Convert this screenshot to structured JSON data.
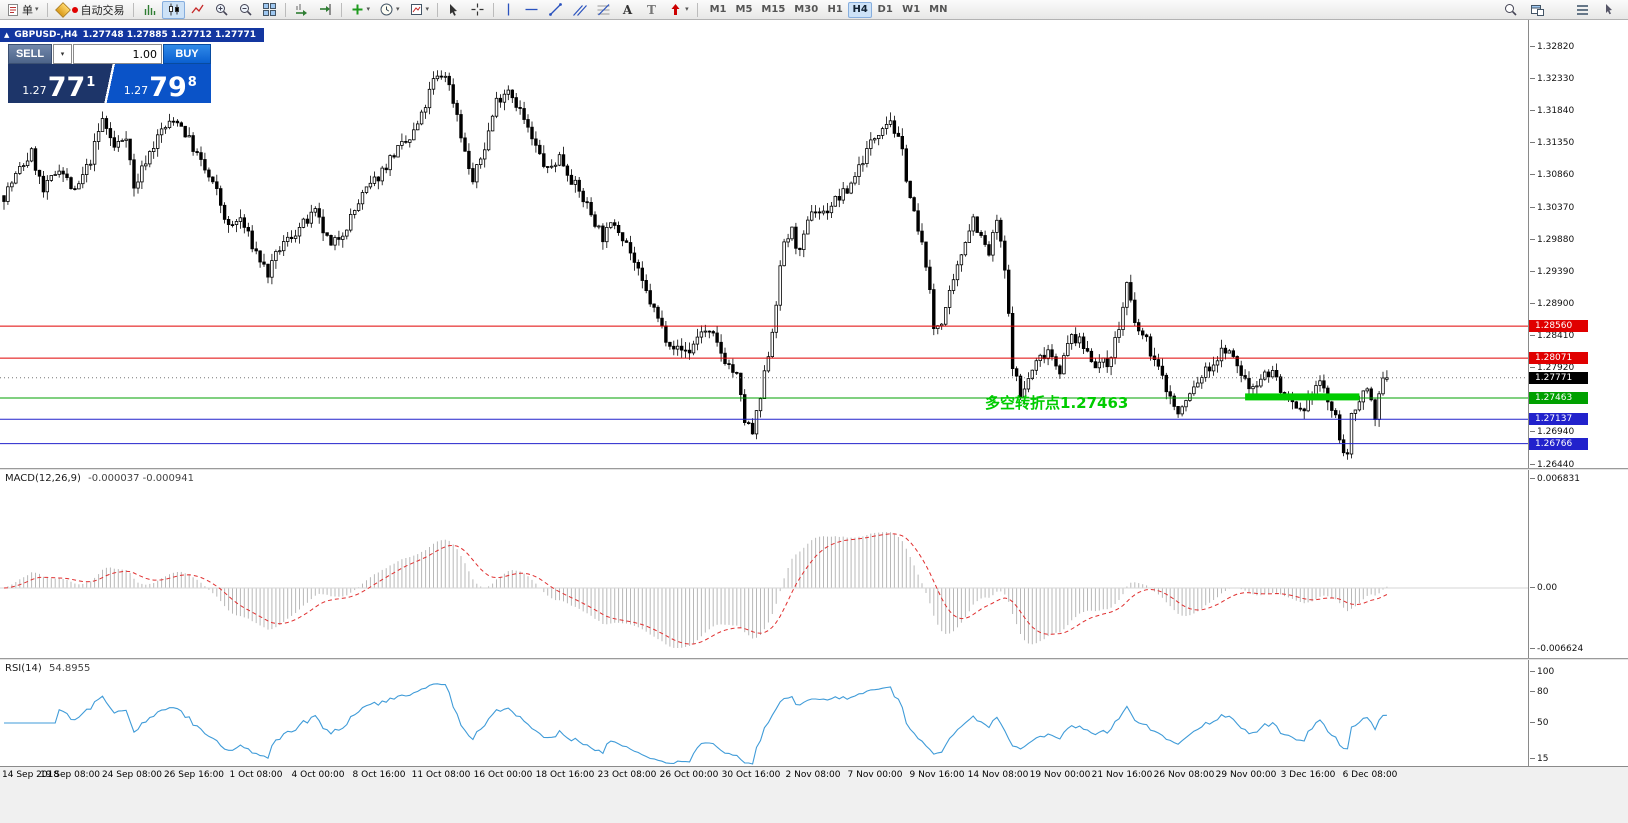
{
  "toolbar": {
    "order_label": "单",
    "autotrade_label": "自动交易",
    "timeframes": [
      "M1",
      "M5",
      "M15",
      "M30",
      "H1",
      "H4",
      "D1",
      "W1",
      "MN"
    ],
    "active_timeframe": "H4",
    "icon_names": [
      "new-order",
      "autotrade",
      "bar-chart",
      "candlestick-chart",
      "line-chart",
      "zoom-in",
      "zoom-out",
      "tile-windows",
      "auto-scroll",
      "chart-shift",
      "indicators",
      "periods",
      "templates",
      "cursor",
      "crosshair",
      "vertical-line",
      "horizontal-line",
      "trendline",
      "equidistant-channel",
      "fibonacci",
      "text",
      "label",
      "arrows",
      "search",
      "new-window",
      "window-list"
    ]
  },
  "symbol_bar": {
    "symbol": "GBPUSD-,H4",
    "ohlc": "1.27748 1.27885 1.27712 1.27771"
  },
  "oct": {
    "sell_label": "SELL",
    "buy_label": "BUY",
    "volume": "1.00",
    "sell_price_prefix": "1.27",
    "sell_price_big": "77",
    "sell_price_sup": "1",
    "buy_price_prefix": "1.27",
    "buy_price_big": "79",
    "buy_price_sup": "8"
  },
  "annotation": {
    "text": "多空转折点1.27463",
    "color": "#00cc00"
  },
  "chart_data": {
    "type": "candlestick",
    "symbol": "GBPUSD-",
    "timeframe": "H4",
    "open": 1.27748,
    "high": 1.27885,
    "low": 1.27712,
    "close": 1.27771,
    "bars": 352,
    "bar_spacing": 3.94,
    "price_axis": {
      "min": 1.2644,
      "max": 1.3282,
      "ticks": [
        "1.32820",
        "1.32330",
        "1.31840",
        "1.31350",
        "1.30860",
        "1.30370",
        "1.29880",
        "1.29390",
        "1.28900",
        "1.28410",
        "1.27920",
        "1.27430",
        "1.26940",
        "1.26440"
      ]
    },
    "current_price": {
      "value": 1.27771,
      "label": "1.27771",
      "color": "#000000"
    },
    "hlines": [
      {
        "price": 1.2856,
        "label": "1.28560",
        "color": "#e00000"
      },
      {
        "price": 1.28071,
        "label": "1.28071",
        "color": "#e00000"
      },
      {
        "price": 1.27463,
        "label": "1.27463",
        "color": "#00a000"
      },
      {
        "price": 1.27137,
        "label": "1.27137",
        "color": "#2222cc"
      },
      {
        "price": 1.26766,
        "label": "1.26766",
        "color": "#2222cc"
      }
    ],
    "highlight_segment": {
      "price": 1.2748,
      "bar_start": 315,
      "bar_end": 344,
      "color": "#00cc00",
      "thickness": 7
    },
    "path_anchors": [
      [
        0,
        1.3055
      ],
      [
        4,
        1.3095
      ],
      [
        7,
        1.312
      ],
      [
        10,
        1.306
      ],
      [
        14,
        1.31
      ],
      [
        18,
        1.3058
      ],
      [
        22,
        1.311
      ],
      [
        25,
        1.3172
      ],
      [
        28,
        1.3128
      ],
      [
        31,
        1.315
      ],
      [
        33,
        1.3065
      ],
      [
        36,
        1.311
      ],
      [
        40,
        1.3155
      ],
      [
        44,
        1.3172
      ],
      [
        47,
        1.314
      ],
      [
        50,
        1.3105
      ],
      [
        54,
        1.306
      ],
      [
        57,
        1.3005
      ],
      [
        60,
        1.302
      ],
      [
        63,
        1.298
      ],
      [
        67,
        1.2935
      ],
      [
        70,
        1.2975
      ],
      [
        74,
        1.3
      ],
      [
        79,
        1.3028
      ],
      [
        83,
        1.2975
      ],
      [
        87,
        1.301
      ],
      [
        91,
        1.3055
      ],
      [
        95,
        1.3085
      ],
      [
        99,
        1.312
      ],
      [
        103,
        1.314
      ],
      [
        106,
        1.3175
      ],
      [
        109,
        1.323
      ],
      [
        112,
        1.3242
      ],
      [
        115,
        1.318
      ],
      [
        117,
        1.312
      ],
      [
        119,
        1.3076
      ],
      [
        122,
        1.313
      ],
      [
        125,
        1.32
      ],
      [
        128,
        1.322
      ],
      [
        131,
        1.3185
      ],
      [
        134,
        1.314
      ],
      [
        138,
        1.3092
      ],
      [
        141,
        1.3115
      ],
      [
        145,
        1.307
      ],
      [
        148,
        1.304
      ],
      [
        152,
        1.2992
      ],
      [
        155,
        1.3015
      ],
      [
        158,
        1.2985
      ],
      [
        162,
        1.292
      ],
      [
        165,
        1.288
      ],
      [
        168,
        1.284
      ],
      [
        171,
        1.282
      ],
      [
        174,
        1.2818
      ],
      [
        177,
        1.285
      ],
      [
        180,
        1.2838
      ],
      [
        183,
        1.2805
      ],
      [
        186,
        1.2778
      ],
      [
        188,
        1.2712
      ],
      [
        190,
        1.2692
      ],
      [
        192,
        1.2745
      ],
      [
        195,
        1.285
      ],
      [
        198,
        1.2985
      ],
      [
        200,
        1.3
      ],
      [
        202,
        1.2965
      ],
      [
        205,
        1.3035
      ],
      [
        208,
        1.3028
      ],
      [
        211,
        1.3048
      ],
      [
        214,
        1.3062
      ],
      [
        217,
        1.31
      ],
      [
        220,
        1.3135
      ],
      [
        223,
        1.3165
      ],
      [
        225,
        1.3172
      ],
      [
        228,
        1.312
      ],
      [
        230,
        1.3052
      ],
      [
        232,
        1.3
      ],
      [
        234,
        1.2955
      ],
      [
        236,
        1.2852
      ],
      [
        238,
        1.2865
      ],
      [
        241,
        1.292
      ],
      [
        244,
        1.299
      ],
      [
        246,
        1.3022
      ],
      [
        248,
        1.299
      ],
      [
        250,
        1.2965
      ],
      [
        252,
        1.3018
      ],
      [
        254,
        1.294
      ],
      [
        256,
        1.28
      ],
      [
        258,
        1.2748
      ],
      [
        260,
        1.2775
      ],
      [
        262,
        1.28
      ],
      [
        265,
        1.2822
      ],
      [
        268,
        1.279
      ],
      [
        271,
        1.2842
      ],
      [
        274,
        1.2825
      ],
      [
        277,
        1.28
      ],
      [
        280,
        1.2798
      ],
      [
        283,
        1.2852
      ],
      [
        285,
        1.292
      ],
      [
        287,
        1.2858
      ],
      [
        290,
        1.2832
      ],
      [
        293,
        1.279
      ],
      [
        296,
        1.2748
      ],
      [
        298,
        1.272
      ],
      [
        301,
        1.2752
      ],
      [
        304,
        1.278
      ],
      [
        307,
        1.28
      ],
      [
        310,
        1.2822
      ],
      [
        313,
        1.2795
      ],
      [
        316,
        1.2762
      ],
      [
        319,
        1.2778
      ],
      [
        322,
        1.2788
      ],
      [
        325,
        1.2746
      ],
      [
        328,
        1.2726
      ],
      [
        330,
        1.2718
      ],
      [
        332,
        1.2758
      ],
      [
        334,
        1.2772
      ],
      [
        336,
        1.2742
      ],
      [
        338,
        1.2712
      ],
      [
        340,
        1.2668
      ],
      [
        341,
        1.2652
      ],
      [
        342,
        1.2715
      ],
      [
        344,
        1.2748
      ],
      [
        346,
        1.2762
      ],
      [
        348,
        1.2722
      ],
      [
        350,
        1.277
      ],
      [
        351,
        1.2777
      ]
    ],
    "time_axis": {
      "labels": [
        "14 Sep 2018",
        "19 Sep 08:00",
        "24 Sep 08:00",
        "26 Sep 16:00",
        "1 Oct 08:00",
        "4 Oct 00:00",
        "8 Oct 16:00",
        "11 Oct 08:00",
        "16 Oct 00:00",
        "18 Oct 16:00",
        "23 Oct 08:00",
        "26 Oct 00:00",
        "30 Oct 16:00",
        "2 Nov 08:00",
        "7 Nov 00:00",
        "9 Nov 16:00",
        "14 Nov 08:00",
        "19 Nov 00:00",
        "21 Nov 16:00",
        "26 Nov 08:00",
        "29 Nov 00:00",
        "3 Dec 16:00",
        "6 Dec 08:00"
      ]
    },
    "macd": {
      "name": "MACD(12,26,9)",
      "values": "-0.000037 -0.000941",
      "axis_max": "0.006831",
      "axis_zero": "0.00",
      "axis_min": "-0.006624",
      "histogram_color": "#b8b8b8",
      "signal_color": "#e03030"
    },
    "rsi": {
      "name": "RSI(14)",
      "value": "54.8955",
      "ticks": [
        "100",
        "80",
        "50",
        "15"
      ],
      "line_color": "#3f9bd8"
    }
  }
}
